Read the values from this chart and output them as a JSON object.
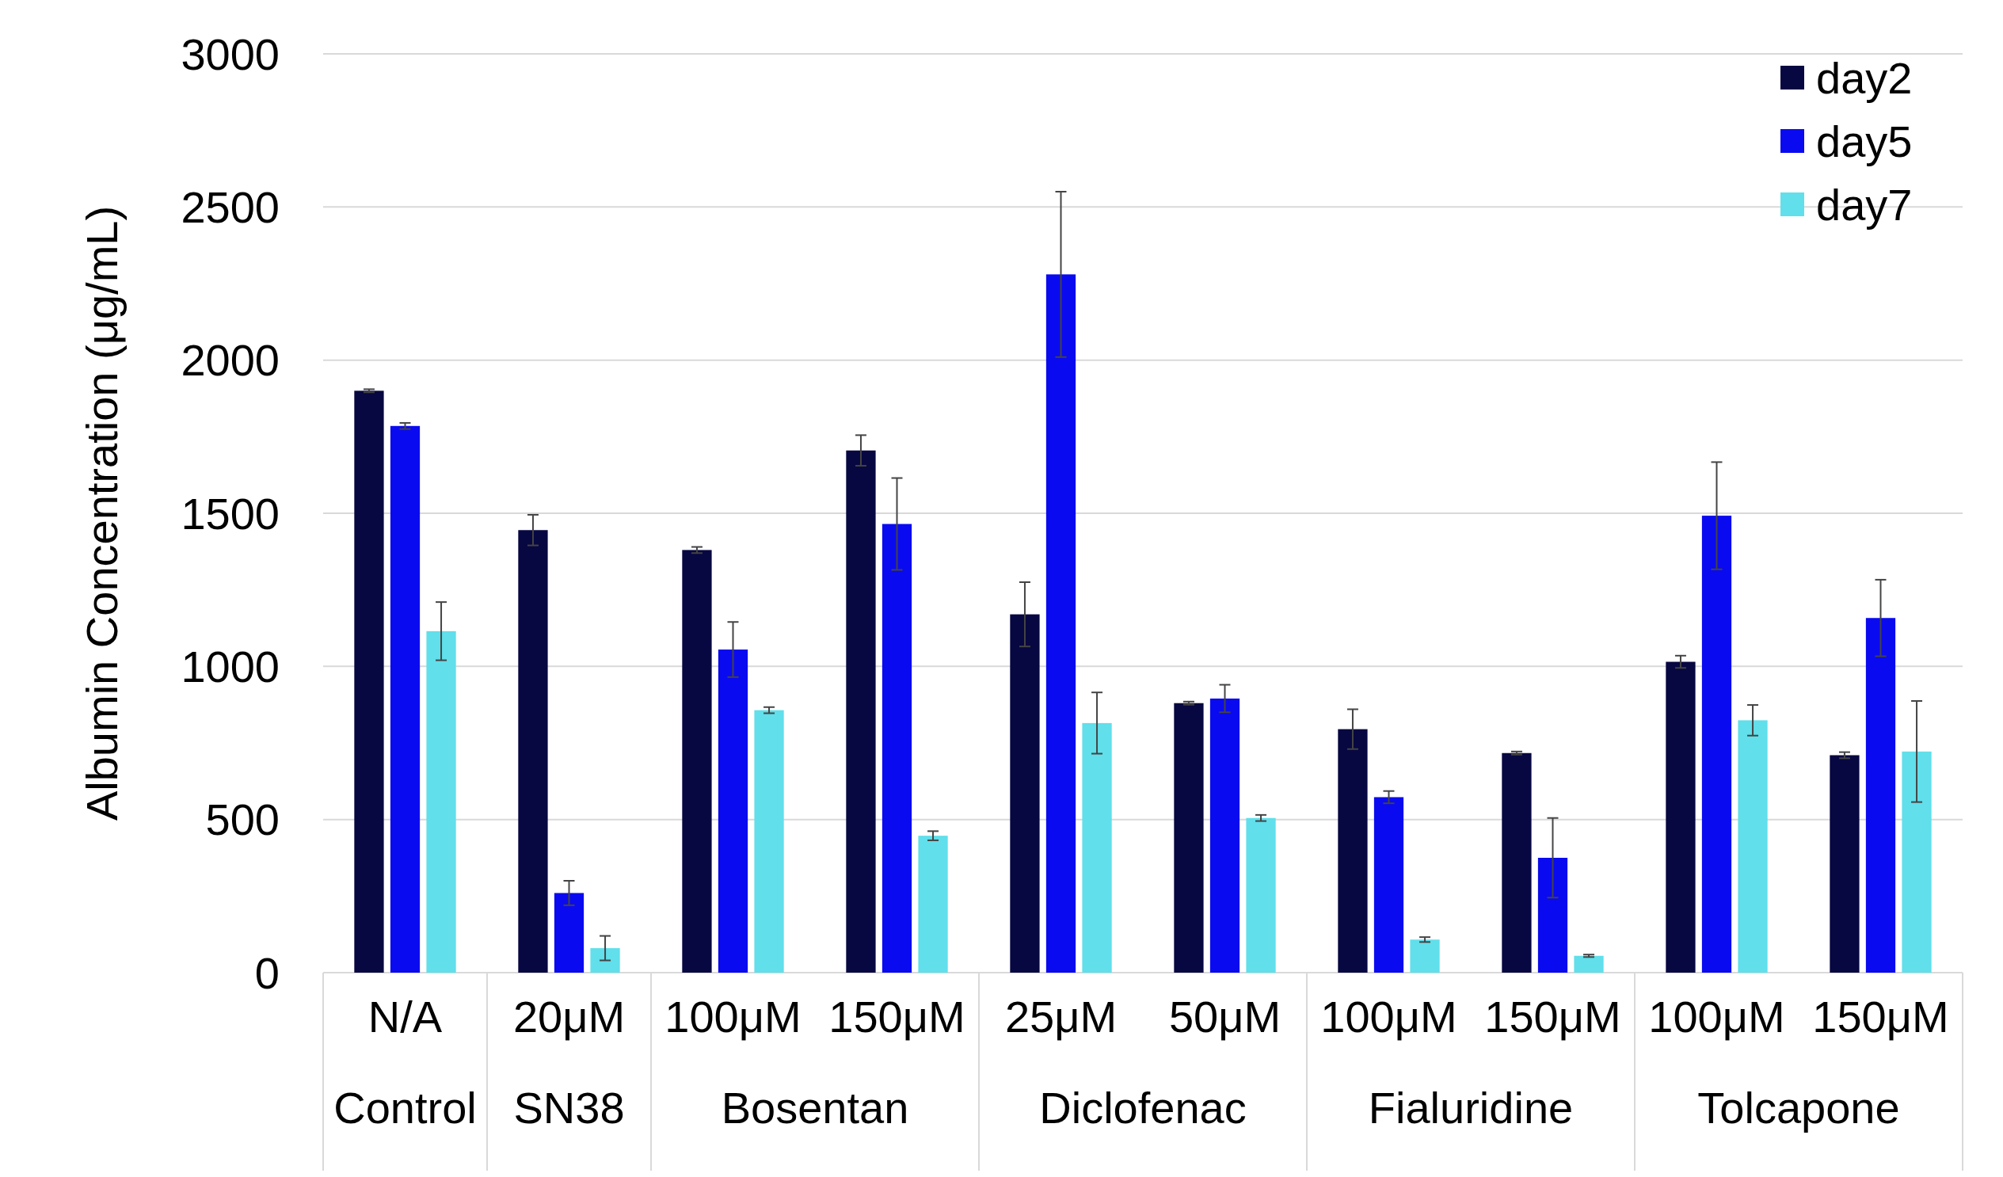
{
  "chart_data": [
    {
      "type": "bar",
      "ylabel": "Albumin Concentration (μg/mL)",
      "xlabel": "Control",
      "categories": [
        "N/A"
      ],
      "series": [
        {
          "color": "#070741",
          "values": [
            1900
          ],
          "errors": [
            5
          ]
        },
        {
          "color": "#0a0af0",
          "values": [
            1785
          ],
          "errors": [
            10
          ]
        },
        {
          "color": "#61dfeb",
          "values": [
            1115
          ],
          "errors": [
            95
          ]
        }
      ],
      "ylim": [
        0,
        3000
      ],
      "yticks": [
        0,
        500,
        1000,
        1500,
        2000,
        2500,
        3000
      ],
      "grid": "y"
    },
    {
      "type": "bar",
      "xlabel": "SN38",
      "categories": [
        "20μM"
      ],
      "series": [
        {
          "color": "#070741",
          "values": [
            1445
          ],
          "errors": [
            50
          ]
        },
        {
          "color": "#0a0af0",
          "values": [
            260
          ],
          "errors": [
            40
          ]
        },
        {
          "color": "#61dfeb",
          "values": [
            80
          ],
          "errors": [
            40
          ]
        }
      ],
      "ylim": [
        0,
        3000
      ],
      "yticks": [
        0,
        500,
        1000,
        1500,
        2000,
        2500,
        3000
      ],
      "grid": "y",
      "tick_labels": "x"
    },
    {
      "type": "bar",
      "xlabel": "Bosentan",
      "categories": [
        "100μM",
        "150μM"
      ],
      "series": [
        {
          "color": "#070741",
          "values": [
            1380,
            1705
          ],
          "errors": [
            10,
            50
          ]
        },
        {
          "color": "#0a0af0",
          "values": [
            1055,
            1465
          ],
          "errors": [
            90,
            150
          ]
        },
        {
          "color": "#61dfeb",
          "values": [
            857,
            447
          ],
          "errors": [
            10,
            15
          ]
        }
      ],
      "ylim": [
        0,
        3000
      ],
      "yticks": [
        0,
        500,
        1000,
        1500,
        2000,
        2500,
        3000
      ],
      "grid": "y",
      "tick_labels": "x"
    },
    {
      "type": "bar",
      "xlabel": "Diclofenac",
      "categories": [
        "25μM",
        "50μM"
      ],
      "series": [
        {
          "color": "#070741",
          "values": [
            1170,
            880
          ],
          "errors": [
            105,
            5
          ]
        },
        {
          "color": "#0a0af0",
          "values": [
            2280,
            895
          ],
          "errors": [
            270,
            45
          ]
        },
        {
          "color": "#61dfeb",
          "values": [
            815,
            505
          ],
          "errors": [
            100,
            10
          ]
        }
      ],
      "ylim": [
        0,
        3000
      ],
      "yticks": [
        0,
        500,
        1000,
        1500,
        2000,
        2500,
        3000
      ],
      "grid": "y",
      "tick_labels": "x"
    },
    {
      "type": "bar",
      "xlabel": "Fialuridine",
      "categories": [
        "100μM",
        "150μM"
      ],
      "series": [
        {
          "color": "#070741",
          "values": [
            795,
            717
          ],
          "errors": [
            65,
            5
          ]
        },
        {
          "color": "#0a0af0",
          "values": [
            573,
            375
          ],
          "errors": [
            20,
            130
          ]
        },
        {
          "color": "#61dfeb",
          "values": [
            108,
            55
          ],
          "errors": [
            8,
            4
          ]
        }
      ],
      "ylim": [
        0,
        3000
      ],
      "yticks": [
        0,
        500,
        1000,
        1500,
        2000,
        2500,
        3000
      ],
      "grid": "y",
      "tick_labels": "x"
    },
    {
      "type": "bar",
      "xlabel": "Tolcapone",
      "categories": [
        "100μM",
        "150μM"
      ],
      "series": [
        {
          "name": "day2",
          "color": "#070741",
          "values": [
            1015,
            710
          ],
          "errors": [
            20,
            10
          ]
        },
        {
          "name": "day5",
          "color": "#0a0af0",
          "values": [
            1492,
            1158
          ],
          "errors": [
            175,
            125
          ]
        },
        {
          "name": "day7",
          "color": "#61dfeb",
          "values": [
            824,
            722
          ],
          "errors": [
            50,
            165
          ]
        }
      ],
      "ylim": [
        0,
        3000
      ],
      "yticks": [
        0,
        500,
        1000,
        1500,
        2000,
        2500,
        3000
      ],
      "grid": "y",
      "tick_labels": "x",
      "legend": "top right"
    }
  ]
}
